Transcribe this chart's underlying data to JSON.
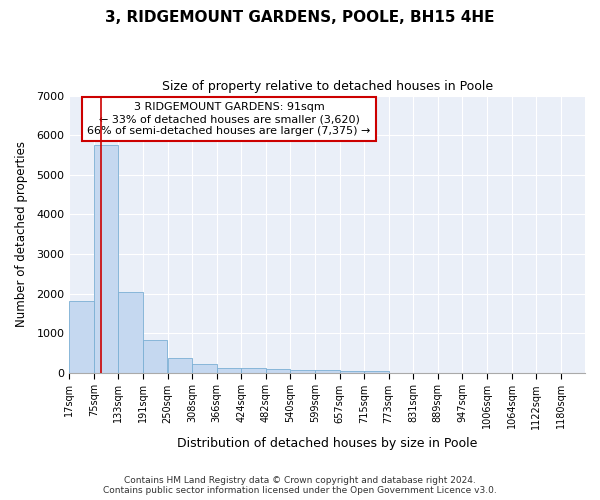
{
  "title": "3, RIDGEMOUNT GARDENS, POOLE, BH15 4HE",
  "subtitle": "Size of property relative to detached houses in Poole",
  "xlabel": "Distribution of detached houses by size in Poole",
  "ylabel": "Number of detached properties",
  "bin_labels": [
    "17sqm",
    "75sqm",
    "133sqm",
    "191sqm",
    "250sqm",
    "308sqm",
    "366sqm",
    "424sqm",
    "482sqm",
    "540sqm",
    "599sqm",
    "657sqm",
    "715sqm",
    "773sqm",
    "831sqm",
    "889sqm",
    "947sqm",
    "1006sqm",
    "1064sqm",
    "1122sqm",
    "1180sqm"
  ],
  "bin_edges": [
    17,
    75,
    133,
    191,
    250,
    308,
    366,
    424,
    482,
    540,
    599,
    657,
    715,
    773,
    831,
    889,
    947,
    1006,
    1064,
    1122,
    1180
  ],
  "bar_heights": [
    1800,
    5750,
    2050,
    820,
    370,
    220,
    120,
    110,
    90,
    70,
    65,
    55,
    55,
    0,
    0,
    0,
    0,
    0,
    0,
    0,
    0
  ],
  "bar_color": "#c5d8f0",
  "bar_edge_color": "#7bafd4",
  "property_size": 91,
  "red_line_color": "#cc0000",
  "annotation_line1": "3 RIDGEMOUNT GARDENS: 91sqm",
  "annotation_line2": "← 33% of detached houses are smaller (3,620)",
  "annotation_line3": "66% of semi-detached houses are larger (7,375) →",
  "annotation_box_color": "#cc0000",
  "ylim": [
    0,
    7000
  ],
  "yticks": [
    0,
    1000,
    2000,
    3000,
    4000,
    5000,
    6000,
    7000
  ],
  "background_color": "#ffffff",
  "plot_bg_color": "#eaeff8",
  "grid_color": "#ffffff",
  "footer_line1": "Contains HM Land Registry data © Crown copyright and database right 2024.",
  "footer_line2": "Contains public sector information licensed under the Open Government Licence v3.0."
}
